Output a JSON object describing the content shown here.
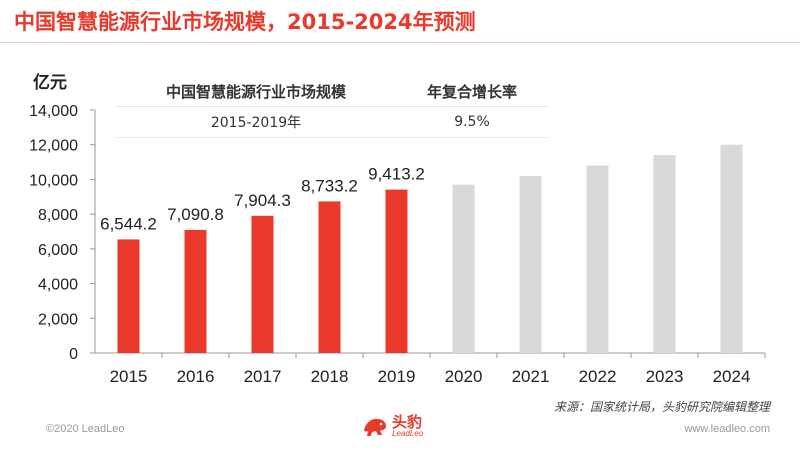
{
  "title": "中国智慧能源行业市场规模，2015-2024年预测",
  "unit_label": "亿元",
  "inset_table": {
    "headers": [
      "中国智慧能源行业市场规模",
      "年复合增长率"
    ],
    "row": [
      "2015-2019年",
      "9.5%"
    ]
  },
  "source": "来源：国家统计局，头豹研究院编辑整理",
  "footer": {
    "copyright": "©2020 LeadLeo",
    "website": "www.leadleo.com"
  },
  "logo": {
    "cn": "头豹",
    "en": "LeadLeo"
  },
  "colors": {
    "actual": "#e8392b",
    "forecast": "#d9d9d9",
    "title": "#e8392b"
  },
  "chart_data": {
    "type": "bar",
    "categories": [
      "2015",
      "2016",
      "2017",
      "2018",
      "2019",
      "2020",
      "2021",
      "2022",
      "2023",
      "2024"
    ],
    "values": [
      6544.2,
      7090.8,
      7904.3,
      8733.2,
      9413.2,
      9700,
      10200,
      10800,
      11400,
      12000
    ],
    "data_labels": [
      "6,544.2",
      "7,090.8",
      "7,904.3",
      "8,733.2",
      "9,413.2",
      "",
      "",
      "",
      "",
      ""
    ],
    "forecast_from_index": 5,
    "ylim": [
      0,
      14000
    ],
    "yticks": [
      0,
      2000,
      4000,
      6000,
      8000,
      10000,
      12000,
      14000
    ],
    "ytick_labels": [
      "0",
      "2,000",
      "4,000",
      "6,000",
      "8,000",
      "10,000",
      "12,000",
      "14,000"
    ],
    "ylabel": "亿元",
    "grid": false,
    "legend": "none"
  }
}
